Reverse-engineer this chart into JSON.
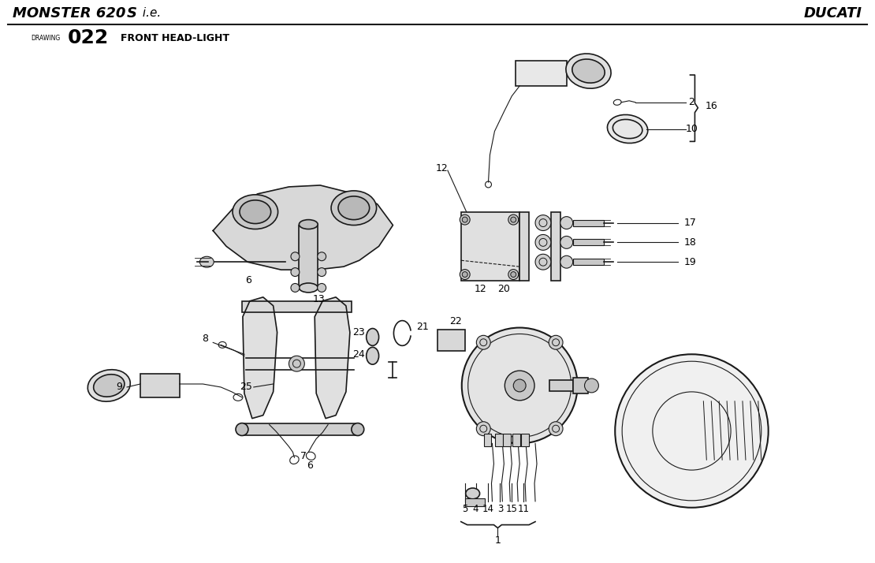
{
  "title_left_bold": "MONSTER 620S",
  "title_left_italic": " i.e.",
  "title_right": "DUCATI",
  "drawing_label": "DRAWING",
  "drawing_number": "022",
  "drawing_title": "FRONT HEAD-LIGHT",
  "bg_color": "#ffffff",
  "line_color": "#1a1a1a",
  "text_color": "#000000"
}
